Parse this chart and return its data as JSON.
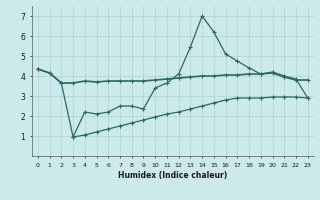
{
  "xlabel": "Humidex (Indice chaleur)",
  "background_color": "#cce9eb",
  "grid_color": "#aad4d6",
  "line_color": "#2a6b5e",
  "ylim": [
    0,
    7.5
  ],
  "xlim": [
    -0.5,
    23.5
  ],
  "line1_x": [
    0,
    1,
    2,
    3,
    4,
    5,
    6,
    7,
    8,
    9,
    10,
    11,
    12,
    13,
    14,
    15,
    16,
    17,
    18,
    19,
    20,
    21,
    22,
    23
  ],
  "line1_y": [
    4.35,
    4.15,
    3.65,
    3.65,
    3.75,
    3.7,
    3.75,
    3.75,
    3.75,
    3.75,
    3.8,
    3.85,
    3.9,
    3.95,
    4.0,
    4.0,
    4.05,
    4.05,
    4.1,
    4.1,
    4.15,
    3.95,
    3.8,
    3.8
  ],
  "line2_x": [
    0,
    1,
    2,
    3,
    4,
    5,
    6,
    7,
    8,
    9,
    10,
    11,
    12,
    13,
    14,
    15,
    16,
    17,
    18,
    19,
    20,
    21,
    22,
    23
  ],
  "line2_y": [
    4.35,
    4.15,
    3.65,
    0.95,
    2.2,
    2.1,
    2.2,
    2.5,
    2.5,
    2.35,
    3.4,
    3.65,
    4.1,
    5.45,
    7.0,
    6.2,
    5.1,
    4.75,
    4.4,
    4.1,
    4.2,
    4.0,
    3.85,
    2.9
  ],
  "line3_x": [
    3,
    4,
    5,
    6,
    7,
    8,
    9,
    10,
    11,
    12,
    13,
    14,
    15,
    16,
    17,
    18,
    19,
    20,
    21,
    22,
    23
  ],
  "line3_y": [
    0.95,
    1.05,
    1.2,
    1.35,
    1.5,
    1.65,
    1.8,
    1.95,
    2.1,
    2.2,
    2.35,
    2.5,
    2.65,
    2.8,
    2.9,
    2.9,
    2.9,
    2.95,
    2.95,
    2.95,
    2.9
  ],
  "yticks": [
    1,
    2,
    3,
    4,
    5,
    6,
    7
  ],
  "xticks": [
    0,
    1,
    2,
    3,
    4,
    5,
    6,
    7,
    8,
    9,
    10,
    11,
    12,
    13,
    14,
    15,
    16,
    17,
    18,
    19,
    20,
    21,
    22,
    23
  ]
}
